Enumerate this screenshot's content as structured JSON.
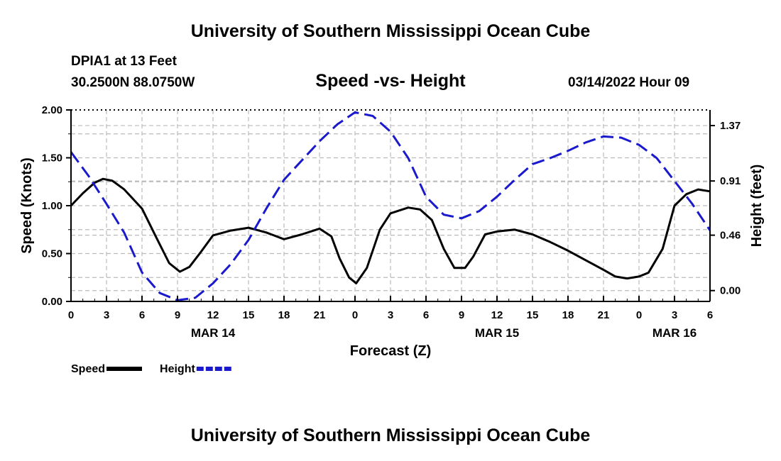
{
  "header": {
    "title": "University of Southern Mississippi Ocean Cube",
    "station": "DPIA1 at 13 Feet",
    "coordinates": "30.2500N  88.0750W",
    "datetime": "03/14/2022 Hour 09"
  },
  "footer": {
    "title": "University of Southern Mississippi Ocean Cube"
  },
  "colors": {
    "speed": "#000000",
    "height": "#1a1acc",
    "grid": "#bbbbbb"
  },
  "chart_data": {
    "type": "line",
    "title": "Speed -vs- Height",
    "xlabel": "Forecast (Z)",
    "ylabel": "Speed (Knots)",
    "y2label": "Height (feet)",
    "xlim": [
      0,
      54
    ],
    "ylim": [
      0,
      2.0
    ],
    "y2lim": [
      -0.09,
      1.5
    ],
    "x_ticks": [
      0,
      3,
      6,
      9,
      12,
      15,
      18,
      21,
      24,
      27,
      30,
      33,
      36,
      39,
      42,
      45,
      48,
      51,
      54
    ],
    "x_tick_labels": [
      "0",
      "3",
      "6",
      "9",
      "12",
      "15",
      "18",
      "21",
      "0",
      "3",
      "6",
      "9",
      "12",
      "15",
      "18",
      "21",
      "0",
      "3",
      "6"
    ],
    "date_labels": [
      {
        "x": 12,
        "label": "MAR 14"
      },
      {
        "x": 36,
        "label": "MAR 15"
      },
      {
        "x": 51,
        "label": "MAR 16"
      }
    ],
    "y_ticks": [
      0,
      0.5,
      1.0,
      1.5,
      2.0
    ],
    "y_tick_labels": [
      "0.00",
      "0.50",
      "1.00",
      "1.50",
      "2.00"
    ],
    "y2_ticks": [
      0.0,
      0.46,
      0.91,
      1.37
    ],
    "y2_tick_labels": [
      "0.00",
      "0.46",
      "0.91",
      "1.37"
    ],
    "grid": true,
    "series": [
      {
        "name": "Speed",
        "axis": "left",
        "style": "solid",
        "x": [
          0,
          1,
          2,
          2.7,
          3.5,
          4.5,
          6,
          7.2,
          8.3,
          9.2,
          10,
          11,
          12,
          13.5,
          15,
          16.5,
          18,
          19.5,
          21,
          22,
          22.7,
          23.5,
          24.1,
          25,
          26.1,
          27,
          28.5,
          29.5,
          30.5,
          31.5,
          32.4,
          33.3,
          34,
          35,
          36,
          37.5,
          39,
          40.5,
          42,
          43.5,
          45,
          46,
          47,
          48,
          48.8,
          50,
          51,
          52,
          53,
          54
        ],
        "values": [
          1.0,
          1.13,
          1.24,
          1.28,
          1.26,
          1.17,
          0.97,
          0.67,
          0.4,
          0.31,
          0.36,
          0.52,
          0.69,
          0.74,
          0.77,
          0.72,
          0.65,
          0.7,
          0.76,
          0.68,
          0.45,
          0.25,
          0.19,
          0.35,
          0.75,
          0.92,
          0.98,
          0.96,
          0.85,
          0.55,
          0.35,
          0.35,
          0.47,
          0.7,
          0.73,
          0.75,
          0.7,
          0.62,
          0.53,
          0.43,
          0.33,
          0.26,
          0.24,
          0.26,
          0.3,
          0.55,
          1.0,
          1.12,
          1.17,
          1.15
        ]
      },
      {
        "name": "Height",
        "axis": "right",
        "style": "dashed",
        "x": [
          0,
          1.5,
          3,
          4.5,
          6,
          7.5,
          9,
          10.5,
          12,
          13.5,
          15,
          16.5,
          18,
          19.5,
          21,
          22.5,
          24,
          25.5,
          27,
          28.5,
          30,
          31.5,
          33,
          34.5,
          36,
          37.5,
          39,
          40.5,
          42,
          43.5,
          45,
          46.5,
          48,
          49.5,
          51,
          52.5,
          54
        ],
        "values": [
          1.15,
          0.95,
          0.72,
          0.48,
          0.15,
          -0.02,
          -0.08,
          -0.06,
          0.06,
          0.22,
          0.42,
          0.68,
          0.92,
          1.08,
          1.24,
          1.38,
          1.48,
          1.45,
          1.32,
          1.1,
          0.78,
          0.63,
          0.6,
          0.66,
          0.78,
          0.92,
          1.05,
          1.1,
          1.16,
          1.23,
          1.28,
          1.27,
          1.21,
          1.1,
          0.91,
          0.72,
          0.5
        ]
      }
    ],
    "legend": [
      {
        "name": "Speed",
        "label": "Speed",
        "style": "solid"
      },
      {
        "name": "Height",
        "label": "Height",
        "style": "dashed"
      }
    ],
    "legend_position": "bottom-left"
  }
}
